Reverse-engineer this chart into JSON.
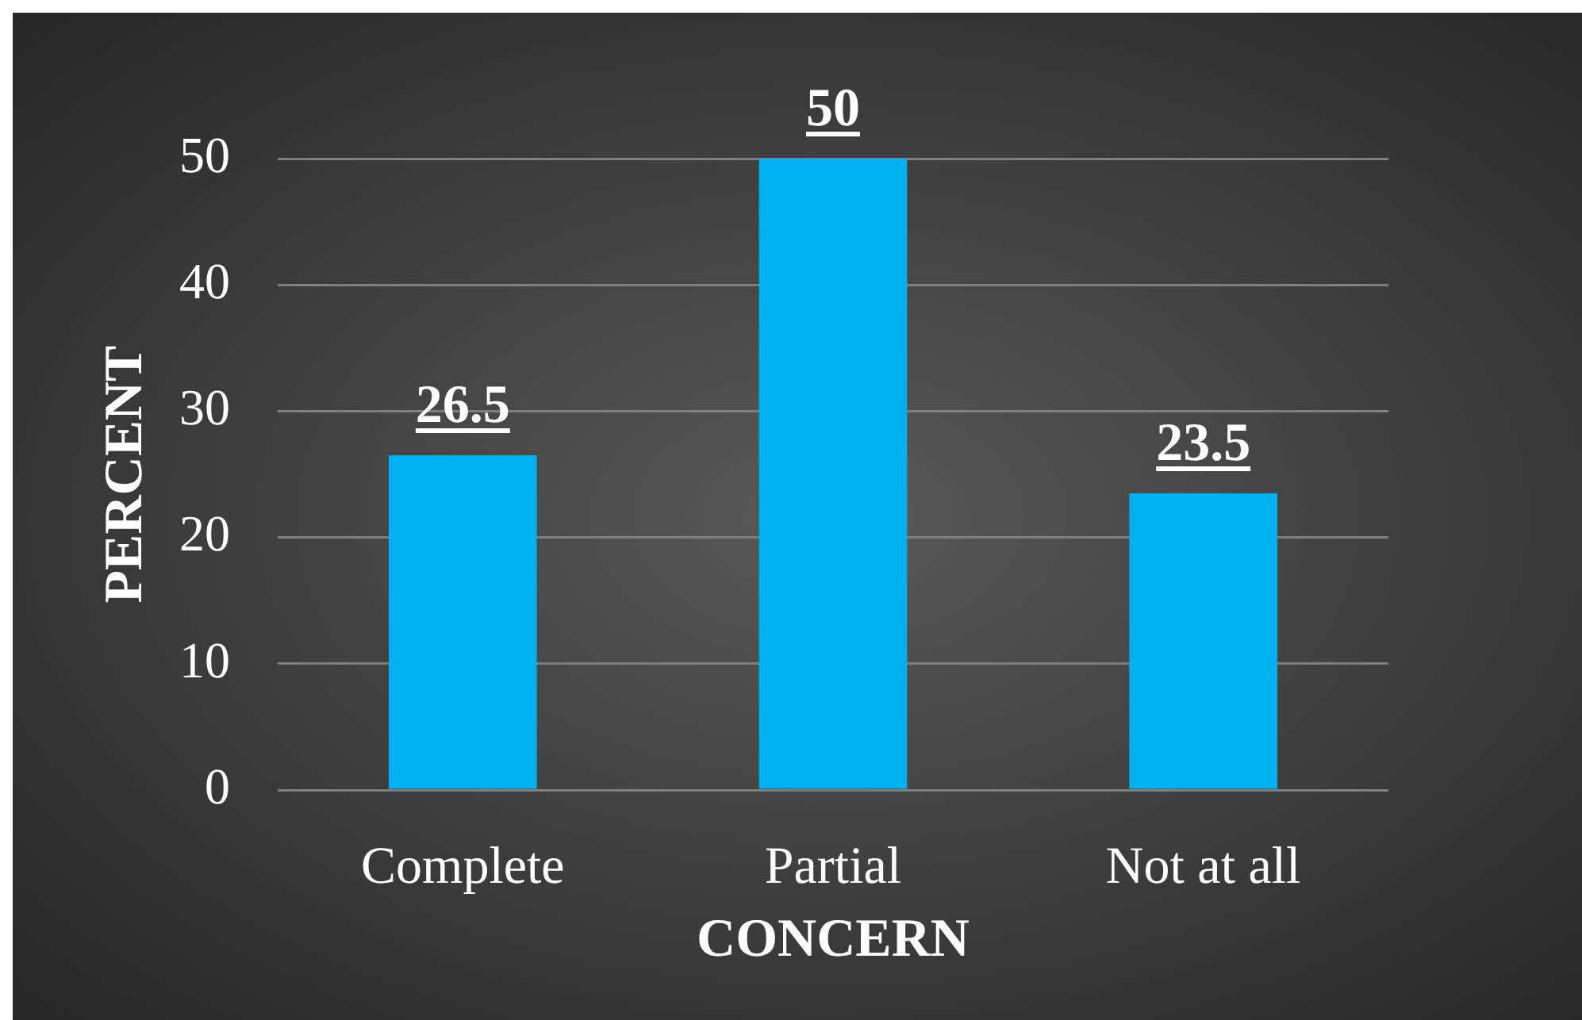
{
  "chart_data": {
    "type": "bar",
    "xlabel": "CONCERN",
    "ylabel": "PERCENT",
    "categories": [
      "Complete",
      "Partial",
      "Not at all"
    ],
    "values": [
      26.5,
      50,
      23.5
    ],
    "color": "#00b0f0",
    "ylim": [
      0,
      50
    ],
    "yticks": [
      0,
      10,
      20,
      30,
      40,
      50
    ],
    "grid": "y",
    "data_labels": true
  }
}
